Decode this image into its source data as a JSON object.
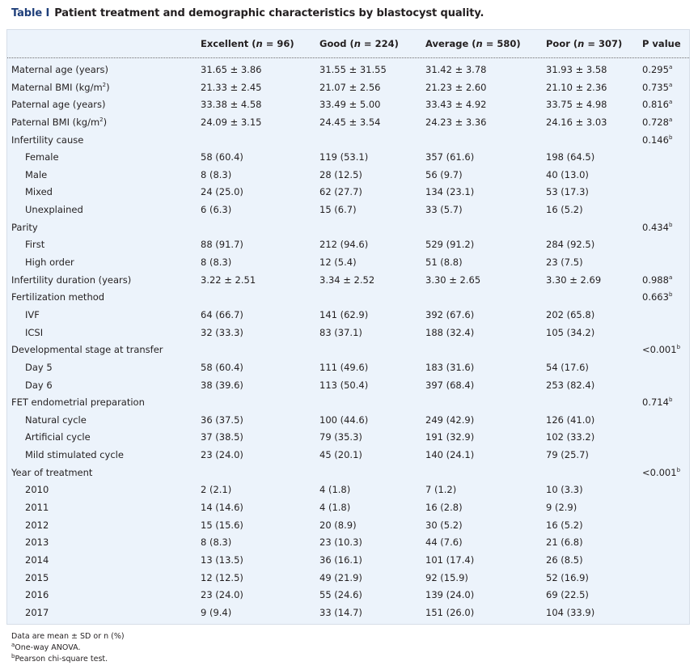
{
  "caption": {
    "label": "Table I",
    "title": "Patient treatment and demographic characteristics by blastocyst quality."
  },
  "header": {
    "excellent": {
      "label": "Excellent (",
      "var": "n",
      "count": " = 96)"
    },
    "good": {
      "label": "Good (",
      "var": "n",
      "count": " = 224)"
    },
    "average": {
      "label": "Average (",
      "var": "n",
      "count": " = 580)"
    },
    "poor": {
      "label": "Poor (",
      "var": "n",
      "count": " = 307)"
    },
    "pvalue": {
      "label": "P value"
    }
  },
  "rows": [
    {
      "label": "Maternal age (years)",
      "indent": false,
      "cells": [
        "31.65 ± 3.86",
        "31.55 ± 31.55",
        "31.42 ± 3.78",
        "31.93 ± 3.58"
      ],
      "p": "0.295",
      "psup": "a"
    },
    {
      "label": "Maternal BMI (kg/m",
      "labelsup": "2",
      "labeltail": ")",
      "indent": false,
      "cells": [
        "21.33 ± 2.45",
        "21.07 ± 2.56",
        "21.23 ± 2.60",
        "21.10 ± 2.36"
      ],
      "p": "0.735",
      "psup": "a"
    },
    {
      "label": "Paternal age (years)",
      "indent": false,
      "cells": [
        "33.38 ± 4.58",
        "33.49 ± 5.00",
        "33.43 ± 4.92",
        "33.75 ± 4.98"
      ],
      "p": "0.816",
      "psup": "a"
    },
    {
      "label": "Paternal BMI (kg/m",
      "labelsup": "2",
      "labeltail": ")",
      "indent": false,
      "cells": [
        "24.09 ± 3.15",
        "24.45 ± 3.54",
        "24.23 ± 3.36",
        "24.16 ± 3.03"
      ],
      "p": "0.728",
      "psup": "a"
    },
    {
      "label": "Infertility cause",
      "indent": false,
      "cells": [
        "",
        "",
        "",
        ""
      ],
      "p": "0.146",
      "psup": "b"
    },
    {
      "label": "Female",
      "indent": true,
      "cells": [
        "58 (60.4)",
        "119 (53.1)",
        "357 (61.6)",
        "198 (64.5)"
      ],
      "p": "",
      "psup": ""
    },
    {
      "label": "Male",
      "indent": true,
      "cells": [
        "8 (8.3)",
        "28 (12.5)",
        "56 (9.7)",
        "40 (13.0)"
      ],
      "p": "",
      "psup": ""
    },
    {
      "label": "Mixed",
      "indent": true,
      "cells": [
        "24 (25.0)",
        "62 (27.7)",
        "134 (23.1)",
        "53 (17.3)"
      ],
      "p": "",
      "psup": ""
    },
    {
      "label": "Unexplained",
      "indent": true,
      "cells": [
        "6 (6.3)",
        "15 (6.7)",
        "33 (5.7)",
        "16 (5.2)"
      ],
      "p": "",
      "psup": ""
    },
    {
      "label": "Parity",
      "indent": false,
      "cells": [
        "",
        "",
        "",
        ""
      ],
      "p": "0.434",
      "psup": "b"
    },
    {
      "label": "First",
      "indent": true,
      "cells": [
        "88 (91.7)",
        "212 (94.6)",
        "529 (91.2)",
        "284 (92.5)"
      ],
      "p": "",
      "psup": ""
    },
    {
      "label": "High order",
      "indent": true,
      "cells": [
        "8 (8.3)",
        "12 (5.4)",
        "51 (8.8)",
        "23 (7.5)"
      ],
      "p": "",
      "psup": ""
    },
    {
      "label": "Infertility duration (years)",
      "indent": false,
      "cells": [
        "3.22 ± 2.51",
        "3.34 ± 2.52",
        "3.30 ± 2.65",
        "3.30 ± 2.69"
      ],
      "p": "0.988",
      "psup": "a"
    },
    {
      "label": "Fertilization method",
      "indent": false,
      "cells": [
        "",
        "",
        "",
        ""
      ],
      "p": "0.663",
      "psup": "b"
    },
    {
      "label": "IVF",
      "indent": true,
      "cells": [
        "64 (66.7)",
        "141 (62.9)",
        "392 (67.6)",
        "202 (65.8)"
      ],
      "p": "",
      "psup": ""
    },
    {
      "label": "ICSI",
      "indent": true,
      "cells": [
        "32 (33.3)",
        "83 (37.1)",
        "188 (32.4)",
        "105 (34.2)"
      ],
      "p": "",
      "psup": ""
    },
    {
      "label": "Developmental stage at transfer",
      "indent": false,
      "cells": [
        "",
        "",
        "",
        ""
      ],
      "p": "<0.001",
      "psup": "b"
    },
    {
      "label": "Day 5",
      "indent": true,
      "cells": [
        "58 (60.4)",
        "111 (49.6)",
        "183 (31.6)",
        "54 (17.6)"
      ],
      "p": "",
      "psup": ""
    },
    {
      "label": "Day 6",
      "indent": true,
      "cells": [
        "38 (39.6)",
        "113 (50.4)",
        "397 (68.4)",
        "253 (82.4)"
      ],
      "p": "",
      "psup": ""
    },
    {
      "label": "FET endometrial preparation",
      "indent": false,
      "cells": [
        "",
        "",
        "",
        ""
      ],
      "p": "0.714",
      "psup": "b"
    },
    {
      "label": "Natural cycle",
      "indent": true,
      "cells": [
        "36 (37.5)",
        "100 (44.6)",
        "249 (42.9)",
        "126 (41.0)"
      ],
      "p": "",
      "psup": ""
    },
    {
      "label": "Artificial cycle",
      "indent": true,
      "cells": [
        "37 (38.5)",
        "79 (35.3)",
        "191 (32.9)",
        "102 (33.2)"
      ],
      "p": "",
      "psup": ""
    },
    {
      "label": "Mild stimulated cycle",
      "indent": true,
      "cells": [
        "23 (24.0)",
        "45 (20.1)",
        "140 (24.1)",
        "79 (25.7)"
      ],
      "p": "",
      "psup": ""
    },
    {
      "label": "Year of treatment",
      "indent": false,
      "cells": [
        "",
        "",
        "",
        ""
      ],
      "p": "<0.001",
      "psup": "b"
    },
    {
      "label": "2010",
      "indent": true,
      "cells": [
        "2 (2.1)",
        "4 (1.8)",
        "7 (1.2)",
        "10 (3.3)"
      ],
      "p": "",
      "psup": ""
    },
    {
      "label": "2011",
      "indent": true,
      "cells": [
        "14 (14.6)",
        "4 (1.8)",
        "16 (2.8)",
        "9 (2.9)"
      ],
      "p": "",
      "psup": ""
    },
    {
      "label": "2012",
      "indent": true,
      "cells": [
        "15 (15.6)",
        "20 (8.9)",
        "30 (5.2)",
        "16 (5.2)"
      ],
      "p": "",
      "psup": ""
    },
    {
      "label": "2013",
      "indent": true,
      "cells": [
        "8 (8.3)",
        "23 (10.3)",
        "44 (7.6)",
        "21 (6.8)"
      ],
      "p": "",
      "psup": ""
    },
    {
      "label": "2014",
      "indent": true,
      "cells": [
        "13 (13.5)",
        "36 (16.1)",
        "101 (17.4)",
        "26 (8.5)"
      ],
      "p": "",
      "psup": ""
    },
    {
      "label": "2015",
      "indent": true,
      "cells": [
        "12 (12.5)",
        "49 (21.9)",
        "92 (15.9)",
        "52 (16.9)"
      ],
      "p": "",
      "psup": ""
    },
    {
      "label": "2016",
      "indent": true,
      "cells": [
        "23 (24.0)",
        "55 (24.6)",
        "139 (24.0)",
        "69 (22.5)"
      ],
      "p": "",
      "psup": ""
    },
    {
      "label": "2017",
      "indent": true,
      "cells": [
        "9 (9.4)",
        "33 (14.7)",
        "151 (26.0)",
        "104 (33.9)"
      ],
      "p": "",
      "psup": ""
    }
  ],
  "notes": [
    {
      "sup": "",
      "text": "Data are mean ± SD or n (%)"
    },
    {
      "sup": "a",
      "text": "One-way ANOVA."
    },
    {
      "sup": "b",
      "text": "Pearson chi-square test."
    }
  ]
}
